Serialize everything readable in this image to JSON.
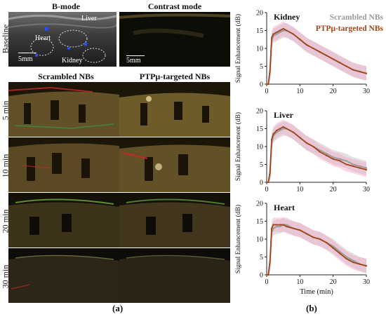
{
  "panel_a": {
    "col_headers": [
      "B-mode",
      "Contrast mode",
      "Scrambled NBs",
      "PTPμ-targeted NBs"
    ],
    "row_labels": [
      "Baseline",
      "5 min",
      "10 min",
      "20 min",
      "30 min"
    ],
    "bmode_labels": {
      "liver": "Liver",
      "heart": "Heart",
      "kidney": "Kidney"
    },
    "scale_label": "5mm",
    "caption": "(a)"
  },
  "panel_b": {
    "caption": "(b)"
  },
  "chart_data": [
    {
      "type": "line",
      "title": "Kidney",
      "ylabel": "Signal Enhancement (dB)",
      "xlabel": "",
      "xlim": [
        0,
        30
      ],
      "ylim": [
        0,
        20
      ],
      "xticks": [
        0,
        10,
        20,
        30
      ],
      "yticks": [
        0,
        5,
        10,
        15,
        20
      ],
      "legend": "top-right",
      "x": [
        0,
        0.5,
        1,
        1.5,
        2,
        3,
        4,
        5,
        6,
        8,
        10,
        12,
        14,
        16,
        18,
        20,
        22,
        24,
        26,
        28,
        30
      ],
      "series": [
        {
          "name": "Scrambled NBs",
          "color": "#9a9a9a",
          "values": [
            0,
            0,
            3,
            12,
            13.5,
            14,
            14.5,
            15,
            15,
            14,
            12.5,
            11,
            10,
            9,
            8,
            7,
            6,
            5,
            4,
            3.5,
            3
          ]
        },
        {
          "name": "PTPμ-targeted NBs",
          "color": "#a0451a",
          "values": [
            0,
            0,
            4,
            13,
            14,
            14.5,
            15,
            15.5,
            15,
            14,
            12.5,
            11,
            10,
            9,
            8,
            7,
            6,
            5,
            4,
            3.5,
            3
          ]
        }
      ]
    },
    {
      "type": "line",
      "title": "Liver",
      "ylabel": "Signal Enhancement (dB)",
      "xlabel": "",
      "xlim": [
        0,
        30
      ],
      "ylim": [
        0,
        20
      ],
      "xticks": [
        0,
        10,
        20,
        30
      ],
      "yticks": [
        0,
        5,
        10,
        15,
        20
      ],
      "x": [
        0,
        0.5,
        1,
        1.5,
        2,
        3,
        4,
        5,
        6,
        8,
        10,
        12,
        14,
        16,
        18,
        20,
        22,
        24,
        26,
        28,
        30
      ],
      "series": [
        {
          "name": "Scrambled NBs",
          "color": "#9a9a9a",
          "values": [
            0,
            0,
            2,
            11,
            13,
            14,
            14.5,
            15,
            15,
            14,
            12.5,
            11,
            10,
            9,
            8,
            7,
            6.5,
            6,
            5,
            4.5,
            4
          ]
        },
        {
          "name": "PTPμ-targeted NBs",
          "color": "#a0451a",
          "values": [
            0,
            0,
            3,
            12,
            13.5,
            14.5,
            15,
            15.5,
            15,
            14,
            12.5,
            11,
            10,
            8.5,
            7.5,
            6.5,
            6,
            5,
            4.5,
            4,
            3.5
          ]
        }
      ]
    },
    {
      "type": "line",
      "title": "Heart",
      "ylabel": "Signal Enhancement (dB)",
      "xlabel": "Time (min)",
      "xlim": [
        0,
        30
      ],
      "ylim": [
        0,
        20
      ],
      "xticks": [
        0,
        10,
        20,
        30
      ],
      "yticks": [
        0,
        5,
        10,
        15,
        20
      ],
      "x": [
        0,
        0.5,
        1,
        1.5,
        2,
        3,
        4,
        5,
        6,
        8,
        10,
        12,
        14,
        16,
        18,
        20,
        22,
        24,
        26,
        28,
        30
      ],
      "series": [
        {
          "name": "Scrambled NBs",
          "color": "#9a9a9a",
          "values": [
            0,
            0,
            3,
            12,
            13,
            13.5,
            13.5,
            14,
            14,
            13,
            12.5,
            11.5,
            10.5,
            10,
            9,
            8,
            6.5,
            5,
            4,
            3,
            2.5
          ]
        },
        {
          "name": "PTPμ-targeted NBs",
          "color": "#a0451a",
          "values": [
            0,
            0,
            4,
            13,
            14,
            14,
            14,
            14,
            13.5,
            13,
            12.5,
            11.5,
            10.5,
            10,
            9,
            7.5,
            6,
            4.5,
            3.5,
            3,
            2.5
          ]
        }
      ]
    }
  ]
}
